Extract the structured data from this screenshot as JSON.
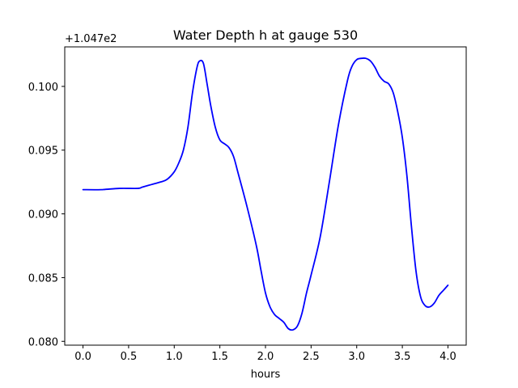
{
  "chart_data": {
    "type": "line",
    "title": "Water Depth h at gauge 530",
    "xlabel": "hours",
    "ylabel": "",
    "offset_label": "+1.047e2",
    "xlim": [
      -0.2,
      4.2
    ],
    "ylim": [
      0.0797,
      0.1031
    ],
    "x_ticks": [
      0.0,
      0.5,
      1.0,
      1.5,
      2.0,
      2.5,
      3.0,
      3.5,
      4.0
    ],
    "x_tick_labels": [
      "0.0",
      "0.5",
      "1.0",
      "1.5",
      "2.0",
      "2.5",
      "3.0",
      "3.5",
      "4.0"
    ],
    "y_ticks": [
      0.08,
      0.085,
      0.09,
      0.095,
      0.1
    ],
    "y_tick_labels": [
      "0.080",
      "0.085",
      "0.090",
      "0.095",
      "0.100"
    ],
    "grid": false,
    "series": [
      {
        "color": "#0000ff",
        "x": [
          0.0,
          0.2,
          0.4,
          0.6,
          0.65,
          0.75,
          0.85,
          0.92,
          1.0,
          1.05,
          1.1,
          1.15,
          1.2,
          1.25,
          1.28,
          1.32,
          1.36,
          1.4,
          1.45,
          1.5,
          1.55,
          1.6,
          1.65,
          1.7,
          1.8,
          1.9,
          1.95,
          2.0,
          2.05,
          2.1,
          2.15,
          2.2,
          2.25,
          2.3,
          2.35,
          2.4,
          2.45,
          2.5,
          2.6,
          2.7,
          2.8,
          2.9,
          2.95,
          3.0,
          3.05,
          3.1,
          3.15,
          3.2,
          3.25,
          3.3,
          3.35,
          3.4,
          3.45,
          3.5,
          3.55,
          3.6,
          3.65,
          3.7,
          3.75,
          3.8,
          3.85,
          3.9,
          3.95,
          4.0
        ],
        "y": [
          0.0919,
          0.0919,
          0.092,
          0.092,
          0.0921,
          0.0923,
          0.0925,
          0.0927,
          0.0933,
          0.094,
          0.095,
          0.0968,
          0.0995,
          0.1015,
          0.102,
          0.1018,
          0.1002,
          0.0985,
          0.0968,
          0.0958,
          0.0955,
          0.0952,
          0.0945,
          0.0932,
          0.0905,
          0.0875,
          0.0856,
          0.0838,
          0.0827,
          0.0821,
          0.0818,
          0.0815,
          0.081,
          0.0809,
          0.0812,
          0.0822,
          0.0838,
          0.0852,
          0.0882,
          0.0925,
          0.097,
          0.1005,
          0.1016,
          0.1021,
          0.1022,
          0.1022,
          0.102,
          0.1015,
          0.1008,
          0.1004,
          0.1002,
          0.0995,
          0.098,
          0.096,
          0.093,
          0.089,
          0.0855,
          0.0835,
          0.0828,
          0.0827,
          0.083,
          0.0836,
          0.084,
          0.0844
        ]
      }
    ]
  }
}
